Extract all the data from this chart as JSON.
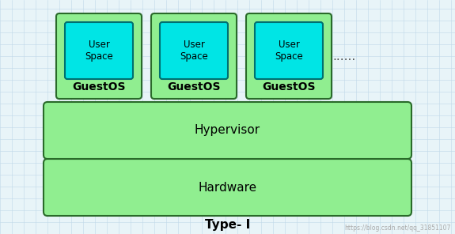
{
  "bg_color": "#e8f4f8",
  "grid_color": "#c0d8e8",
  "title": "Type- I",
  "title_fontsize": 11,
  "watermark": "https://blog.csdn.net/qq_31851107",
  "hypervisor_label": "Hypervisor",
  "hardware_label": "Hardware",
  "user_space_label": "User\nSpace",
  "guestos_label": "GuestOS",
  "dots_label": "......",
  "guest_box_color": "#90ee90",
  "guest_box_edge": "#2a6a2a",
  "user_space_color": "#00e5e5",
  "user_space_edge": "#007070",
  "hypervisor_color": "#90ee90",
  "hypervisor_edge": "#2a6a2a",
  "hardware_color": "#90ee90",
  "hardware_edge": "#2a6a2a",
  "label_fontsize": 11,
  "guestos_fontsize": 10,
  "figw": 5.75,
  "figh": 2.96,
  "dpi": 100
}
